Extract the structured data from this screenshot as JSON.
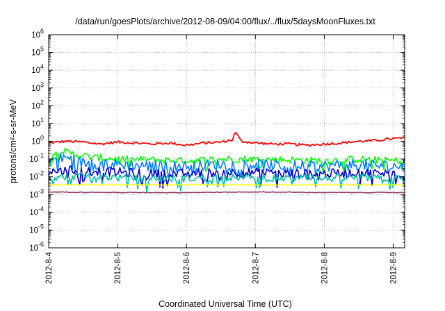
{
  "chart_data": {
    "type": "line",
    "title": "/data/run/goesPlots/archive/2012-08-09/04:00/flux/../flux/5daysMoonFluxes.txt",
    "xlabel": "Coordinated Universal Time (UTC)",
    "ylabel": "protons/cm²-s-sr-MeV",
    "x_scale": "date",
    "xlim": [
      "2012-08-04",
      "2012-08-09T04:00"
    ],
    "x_ticks": [
      "2012-8-4",
      "2012-8-5",
      "2012-8-6",
      "2012-8-7",
      "2012-8-8",
      "2012-8-9"
    ],
    "y_scale": "log",
    "ylim": [
      1e-06,
      1000000
    ],
    "y_ticks": [
      {
        "base": "10",
        "exp": "-6"
      },
      {
        "base": "10",
        "exp": "-5"
      },
      {
        "base": "10",
        "exp": "-4"
      },
      {
        "base": "10",
        "exp": "-3"
      },
      {
        "base": "10",
        "exp": "-2"
      },
      {
        "base": "10",
        "exp": "-1"
      },
      {
        "base": "10",
        "exp": "0"
      },
      {
        "base": "10",
        "exp": "1"
      },
      {
        "base": "10",
        "exp": "2"
      },
      {
        "base": "10",
        "exp": "3"
      },
      {
        "base": "10",
        "exp": "4"
      },
      {
        "base": "10",
        "exp": "5"
      },
      {
        "base": "10",
        "exp": "6"
      }
    ],
    "grid": true,
    "legend": "none",
    "series": [
      {
        "color": "#ff0000",
        "x": [
          "2012-08-04T00:00",
          "2012-08-04T06:00",
          "2012-08-04T12:00",
          "2012-08-04T18:00",
          "2012-08-05T00:00",
          "2012-08-05T06:00",
          "2012-08-05T12:00",
          "2012-08-05T18:00",
          "2012-08-06T00:00",
          "2012-08-06T06:00",
          "2012-08-06T12:00",
          "2012-08-06T16:00",
          "2012-08-06T17:00",
          "2012-08-06T19:00",
          "2012-08-07T00:00",
          "2012-08-07T06:00",
          "2012-08-07T12:00",
          "2012-08-07T18:00",
          "2012-08-08T00:00",
          "2012-08-08T06:00",
          "2012-08-08T12:00",
          "2012-08-08T18:00",
          "2012-08-09T00:00",
          "2012-08-09T04:00"
        ],
        "values": [
          0.8,
          1.0,
          0.9,
          0.7,
          0.9,
          0.8,
          0.7,
          0.8,
          0.6,
          0.8,
          0.9,
          1.2,
          3.5,
          1.0,
          0.8,
          0.7,
          0.7,
          0.6,
          0.7,
          0.8,
          1.0,
          1.1,
          1.4,
          1.5
        ]
      },
      {
        "color": "#00ff00",
        "x": [
          "2012-08-04T00:00",
          "2012-08-04T04:00",
          "2012-08-04T08:00",
          "2012-08-04T16:00",
          "2012-08-05T00:00",
          "2012-08-05T12:00",
          "2012-08-06T00:00",
          "2012-08-06T12:00",
          "2012-08-07T00:00",
          "2012-08-07T12:00",
          "2012-08-08T00:00",
          "2012-08-08T12:00",
          "2012-08-09T00:00",
          "2012-08-09T04:00"
        ],
        "values": [
          0.15,
          0.3,
          0.2,
          0.12,
          0.1,
          0.09,
          0.08,
          0.1,
          0.1,
          0.09,
          0.08,
          0.1,
          0.08,
          0.09
        ]
      },
      {
        "color": "#0080ff",
        "x": [
          "2012-08-04T00:00",
          "2012-08-04T06:00",
          "2012-08-04T12:00",
          "2012-08-05T00:00",
          "2012-08-05T12:00",
          "2012-08-06T00:00",
          "2012-08-06T12:00",
          "2012-08-07T00:00",
          "2012-08-07T12:00",
          "2012-08-08T00:00",
          "2012-08-08T12:00",
          "2012-08-09T00:00",
          "2012-08-09T04:00"
        ],
        "values": [
          0.08,
          0.12,
          0.06,
          0.05,
          0.04,
          0.04,
          0.05,
          0.05,
          0.04,
          0.04,
          0.05,
          0.04,
          0.04
        ]
      },
      {
        "color": "#0000cc",
        "x": [
          "2012-08-04T00:00",
          "2012-08-04T12:00",
          "2012-08-05T00:00",
          "2012-08-05T12:00",
          "2012-08-06T00:00",
          "2012-08-06T12:00",
          "2012-08-07T00:00",
          "2012-08-07T12:00",
          "2012-08-08T00:00",
          "2012-08-08T12:00",
          "2012-08-09T00:00",
          "2012-08-09T04:00"
        ],
        "values": [
          0.02,
          0.025,
          0.018,
          0.015,
          0.015,
          0.018,
          0.017,
          0.015,
          0.015,
          0.017,
          0.015,
          0.016
        ]
      },
      {
        "color": "#00c0a0",
        "x": [
          "2012-08-04T00:00",
          "2012-08-04T12:00",
          "2012-08-05T00:00",
          "2012-08-05T12:00",
          "2012-08-06T00:00",
          "2012-08-06T12:00",
          "2012-08-07T00:00",
          "2012-08-07T12:00",
          "2012-08-08T00:00",
          "2012-08-08T12:00",
          "2012-08-09T00:00",
          "2012-08-09T04:00"
        ],
        "values": [
          0.009,
          0.011,
          0.009,
          0.008,
          0.008,
          0.009,
          0.009,
          0.008,
          0.008,
          0.009,
          0.008,
          0.008
        ]
      },
      {
        "color": "#ffff00",
        "x": [
          "2012-08-04T00:00",
          "2012-08-05T00:00",
          "2012-08-06T00:00",
          "2012-08-07T00:00",
          "2012-08-08T00:00",
          "2012-08-09T00:00",
          "2012-08-09T04:00"
        ],
        "values": [
          0.0035,
          0.0035,
          0.0035,
          0.0035,
          0.0035,
          0.0035,
          0.0035
        ]
      },
      {
        "color": "#903060",
        "x": [
          "2012-08-04T00:00",
          "2012-08-05T00:00",
          "2012-08-06T00:00",
          "2012-08-07T00:00",
          "2012-08-08T00:00",
          "2012-08-09T00:00",
          "2012-08-09T04:00"
        ],
        "values": [
          0.0014,
          0.0013,
          0.0013,
          0.0014,
          0.0013,
          0.0013,
          0.0013
        ]
      }
    ]
  }
}
